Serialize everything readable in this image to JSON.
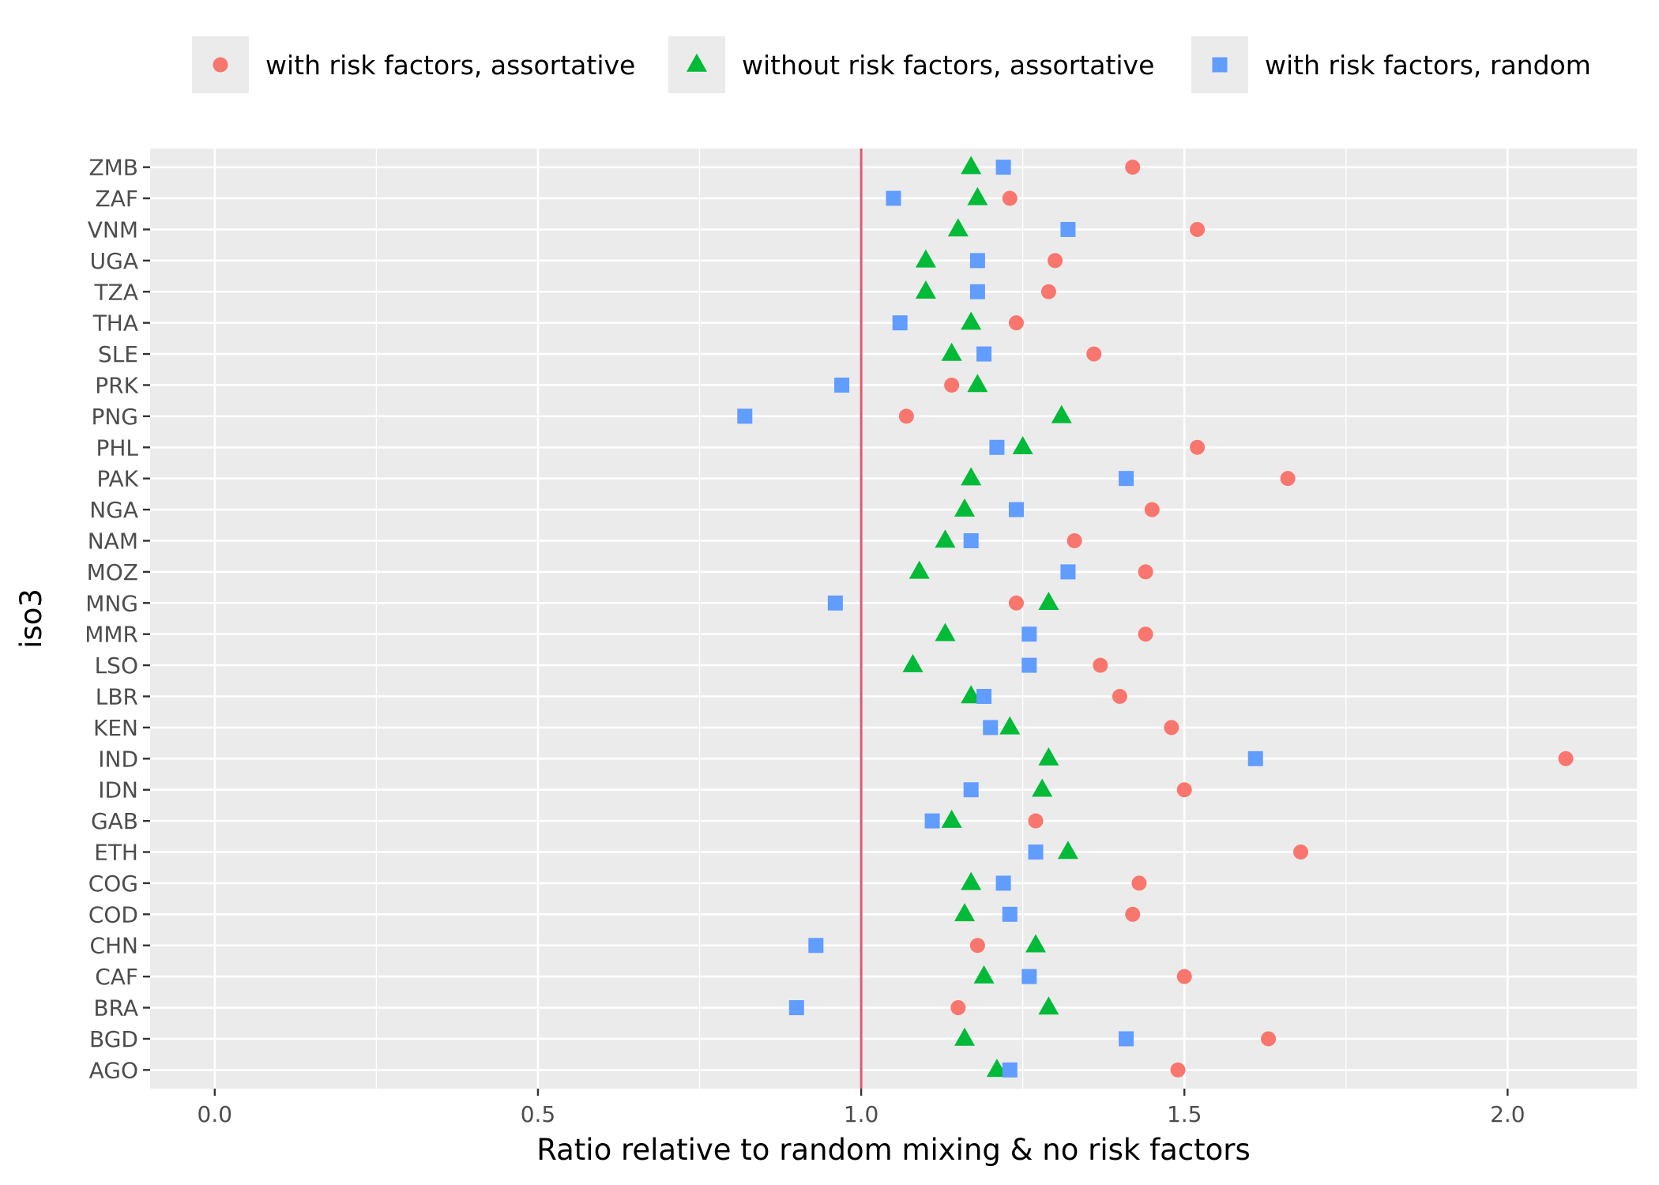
{
  "chart_data": {
    "type": "scatter",
    "xlabel": "Ratio relative to random mixing & no risk factors",
    "ylabel": "iso3",
    "xlim": [
      -0.1,
      2.2
    ],
    "x_ticks": [
      "0.0",
      "0.5",
      "1.0",
      "1.5",
      "2.0"
    ],
    "x_tick_values": [
      0.0,
      0.5,
      1.0,
      1.5,
      2.0
    ],
    "reference_line": {
      "x": 1.0,
      "color": "#e05a6d"
    },
    "grid": true,
    "legend_position": "top",
    "categories": [
      "ZMB",
      "ZAF",
      "VNM",
      "UGA",
      "TZA",
      "THA",
      "SLE",
      "PRK",
      "PNG",
      "PHL",
      "PAK",
      "NGA",
      "NAM",
      "MOZ",
      "MNG",
      "MMR",
      "LSO",
      "LBR",
      "KEN",
      "IND",
      "IDN",
      "GAB",
      "ETH",
      "COG",
      "COD",
      "CHN",
      "CAF",
      "BRA",
      "BGD",
      "AGO"
    ],
    "series": [
      {
        "name": "with risk factors, assortative",
        "marker": "circle",
        "color": "#F8766D",
        "values": [
          1.42,
          1.23,
          1.52,
          1.3,
          1.29,
          1.24,
          1.36,
          1.14,
          1.07,
          1.52,
          1.66,
          1.45,
          1.33,
          1.44,
          1.24,
          1.44,
          1.37,
          1.4,
          1.48,
          2.09,
          1.5,
          1.27,
          1.68,
          1.43,
          1.42,
          1.18,
          1.5,
          1.15,
          1.63,
          1.49
        ]
      },
      {
        "name": "without risk factors, assortative",
        "marker": "triangle",
        "color": "#00BA38",
        "values": [
          1.17,
          1.18,
          1.15,
          1.1,
          1.1,
          1.17,
          1.14,
          1.18,
          1.31,
          1.25,
          1.17,
          1.16,
          1.13,
          1.09,
          1.29,
          1.13,
          1.08,
          1.17,
          1.23,
          1.29,
          1.28,
          1.14,
          1.32,
          1.17,
          1.16,
          1.27,
          1.19,
          1.29,
          1.16,
          1.21
        ]
      },
      {
        "name": "with risk factors, random",
        "marker": "square",
        "color": "#619CFF",
        "values": [
          1.22,
          1.05,
          1.32,
          1.18,
          1.18,
          1.06,
          1.19,
          0.97,
          0.82,
          1.21,
          1.41,
          1.24,
          1.17,
          1.32,
          0.96,
          1.26,
          1.26,
          1.19,
          1.2,
          1.61,
          1.17,
          1.11,
          1.27,
          1.22,
          1.23,
          0.93,
          1.26,
          0.9,
          1.41,
          1.23
        ]
      }
    ]
  }
}
